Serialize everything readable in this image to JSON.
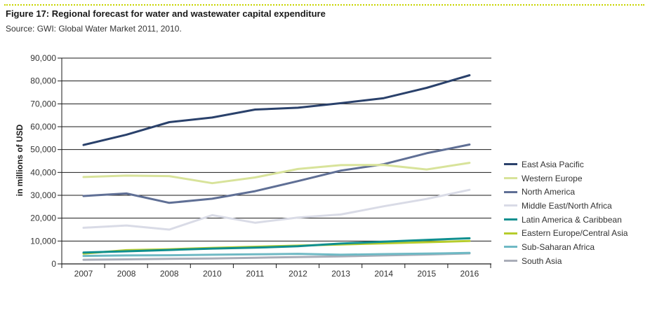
{
  "figure": {
    "title": "Figure 17: Regional forecast for water and wastewater capital expenditure",
    "source": "Source: GWI: Global Water Market 2011, 2010."
  },
  "chart_data": {
    "type": "line",
    "ylabel": "in millions of USD",
    "xlabel": "",
    "ylim": [
      0,
      90000
    ],
    "yticks": [
      "0",
      "10,000",
      "20,000",
      "30,000",
      "40,000",
      "50,000",
      "60,000",
      "70,000",
      "80,000",
      "90,000"
    ],
    "categories": [
      "2007",
      "2008",
      "2008",
      "2010",
      "2011",
      "2012",
      "2013",
      "2014",
      "2015",
      "2016"
    ],
    "grid": "horizontal",
    "legend_position": "right",
    "series": [
      {
        "name": "East Asia Pacific",
        "color": "#2a416b",
        "values": [
          52000,
          56500,
          62000,
          64000,
          67500,
          68300,
          70300,
          72500,
          77000,
          82500
        ]
      },
      {
        "name": "Western Europe",
        "color": "#d8e39a",
        "values": [
          38000,
          38600,
          38400,
          35300,
          37800,
          41500,
          43200,
          43300,
          41300,
          44200
        ]
      },
      {
        "name": "North America",
        "color": "#5f6f95",
        "values": [
          29700,
          30800,
          26700,
          28500,
          31800,
          36200,
          40800,
          43600,
          48400,
          52200
        ]
      },
      {
        "name": "Middle East/North Africa",
        "color": "#d9dbe6",
        "values": [
          15800,
          16800,
          15000,
          21300,
          18000,
          20300,
          21600,
          25200,
          28400,
          32400
        ]
      },
      {
        "name": "Latin America & Caribbean",
        "color": "#0f8f8f",
        "values": [
          5000,
          5500,
          6100,
          6700,
          7100,
          7700,
          8900,
          9700,
          10500,
          11200
        ]
      },
      {
        "name": "Eastern Europe/Central Asia",
        "color": "#b6cc2c",
        "values": [
          4500,
          6000,
          6400,
          7000,
          7500,
          8000,
          8500,
          9000,
          9500,
          10000
        ]
      },
      {
        "name": "Sub-Saharan Africa",
        "color": "#6fb9c4",
        "values": [
          3500,
          3700,
          3800,
          4000,
          4200,
          4400,
          4000,
          4300,
          4500,
          4800
        ]
      },
      {
        "name": "South Asia",
        "color": "#a9adb8",
        "values": [
          1800,
          2000,
          2200,
          2400,
          2700,
          3000,
          3300,
          3700,
          4100,
          4600
        ]
      }
    ]
  }
}
